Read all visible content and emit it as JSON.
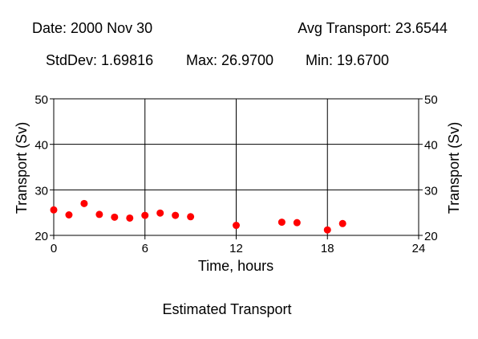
{
  "header": {
    "date": "Date: 2000 Nov 30",
    "avg": "Avg Transport: 23.6544",
    "stddev": "StdDev: 1.69816",
    "max": "Max: 26.9700",
    "min": "Min: 19.6700"
  },
  "chart_data": {
    "type": "scatter",
    "title": "Estimated Transport",
    "xlabel": "Time, hours",
    "ylabel": "Transport (Sv)",
    "ylabel_right": "Transport (Sv)",
    "xlim": [
      0,
      24
    ],
    "ylim": [
      20,
      50
    ],
    "xticks": [
      0,
      6,
      12,
      18,
      24
    ],
    "yticks": [
      20,
      30,
      40,
      50
    ],
    "grid": true,
    "marker_color": "#ff0000",
    "series": [
      {
        "x": [
          0,
          1,
          2,
          3,
          4,
          5,
          6,
          7,
          8,
          9,
          12,
          15,
          16,
          18,
          19
        ],
        "y": [
          25.6,
          24.5,
          27.0,
          24.6,
          24.0,
          23.8,
          24.4,
          24.9,
          24.4,
          24.1,
          22.2,
          22.9,
          22.8,
          21.2,
          22.6
        ]
      }
    ]
  }
}
